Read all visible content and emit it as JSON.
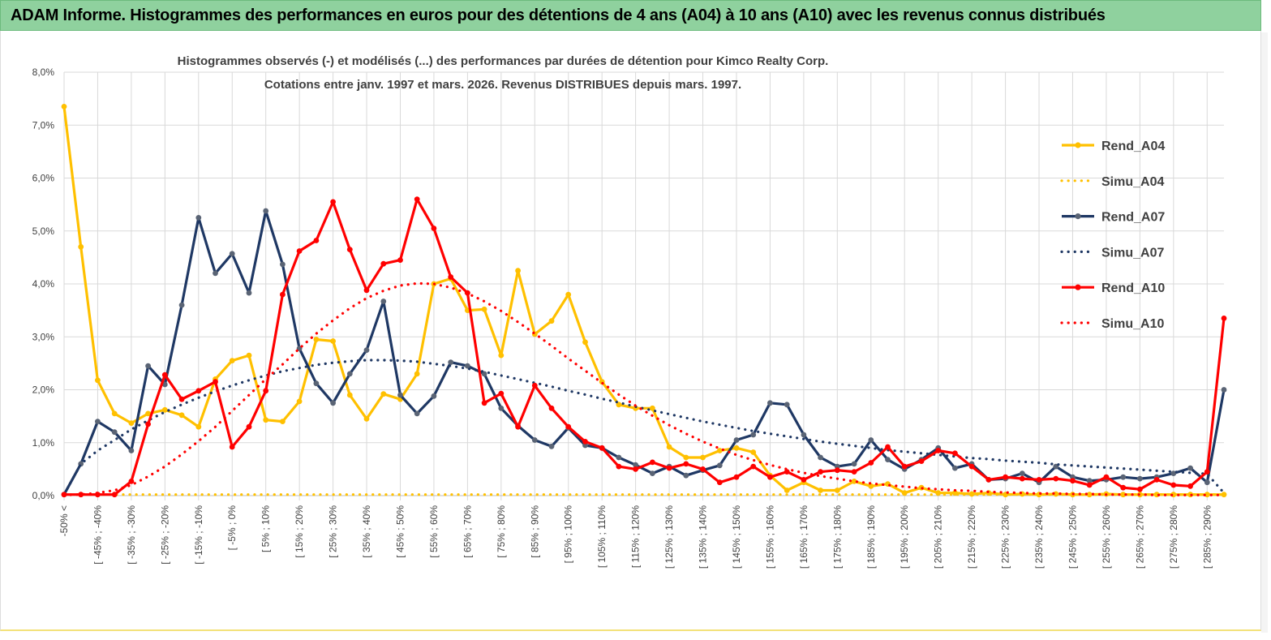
{
  "banner": {
    "title": "ADAM Informe. Histogrammes des performances en euros pour des détentions de 4 ans (A04) à 10 ans (A10) avec les revenus connus distribués"
  },
  "chart_data": {
    "type": "line",
    "title_line1": "Histogrammes observés (-) et modélisés (...) des performances par durées de détention pour Kimco Realty Corp.",
    "title_line2": "Cotations entre janv. 1997 et mars. 2026.  Revenus DISTRIBUES depuis mars. 1997.",
    "ylim": [
      0,
      8
    ],
    "yticks": [
      "0,0%",
      "1,0%",
      "2,0%",
      "3,0%",
      "4,0%",
      "5,0%",
      "6,0%",
      "7,0%",
      "8,0%"
    ],
    "xticks": [
      "-50% <",
      "[ -45% ; -40%",
      "[ -35% ; -30%",
      "[ -25% ; -20%",
      "[ -15% ; -10%",
      "[ -5% ; 0%",
      "[ 5% ; 10%",
      "[ 15% ; 20%",
      "[ 25% ; 30%",
      "[ 35% ; 40%",
      "[ 45% ; 50%",
      "[ 55% ; 60%",
      "[ 65% ; 70%",
      "[ 75% ; 80%",
      "[ 85% ; 90%",
      "[ 95% ; 100%",
      "[ 105% ; 110%",
      "[ 115% ; 120%",
      "[ 125% ; 130%",
      "[ 135% ; 140%",
      "[ 145% ; 150%",
      "[ 155% ; 160%",
      "[ 165% ; 170%",
      "[ 175% ; 180%",
      "[ 185% ; 190%",
      "[ 195% ; 200%",
      "[ 205% ; 210%",
      "[ 215% ; 220%",
      "[ 225% ; 230%",
      "[ 235% ; 240%",
      "[ 245% ; 250%",
      "[ 255% ; 260%",
      "[ 265% ; 270%",
      "[ 275% ; 280%",
      "[ 285% ; 290%"
    ],
    "n_categories": 70,
    "series": [
      {
        "name": "Rend_A04",
        "color": "#ffc000",
        "style": "solid",
        "markers": true,
        "values": [
          7.35,
          4.7,
          2.18,
          1.55,
          1.37,
          1.55,
          1.62,
          1.52,
          1.3,
          2.2,
          2.55,
          2.65,
          1.43,
          1.4,
          1.78,
          2.95,
          2.92,
          1.9,
          1.45,
          1.92,
          1.82,
          2.3,
          4.0,
          4.1,
          3.5,
          3.52,
          2.65,
          4.25,
          3.05,
          3.3,
          3.8,
          2.9,
          2.15,
          1.72,
          1.65,
          1.65,
          0.92,
          0.72,
          0.72,
          0.85,
          0.9,
          0.82,
          0.38,
          0.1,
          0.25,
          0.1,
          0.1,
          0.27,
          0.18,
          0.22,
          0.05,
          0.15,
          0.05,
          0.05,
          0.03,
          0.05,
          0.02,
          0.03,
          0.02,
          0.03,
          0.02,
          0.02,
          0.03,
          0.02,
          0.02,
          0.02,
          0.02,
          0.02,
          0.02,
          0.02
        ]
      },
      {
        "name": "Simu_A04",
        "color": "#ffc000",
        "style": "dotted",
        "markers": false,
        "values": [
          0.02,
          0.02,
          0.02,
          0.02,
          0.02,
          0.02,
          0.02,
          0.02,
          0.02,
          0.02,
          0.02,
          0.02,
          0.02,
          0.02,
          0.02,
          0.02,
          0.02,
          0.02,
          0.02,
          0.02,
          0.02,
          0.02,
          0.02,
          0.02,
          0.02,
          0.02,
          0.02,
          0.02,
          0.02,
          0.02,
          0.02,
          0.02,
          0.02,
          0.02,
          0.02,
          0.02,
          0.02,
          0.02,
          0.02,
          0.02,
          0.02,
          0.02,
          0.02,
          0.02,
          0.02,
          0.02,
          0.02,
          0.02,
          0.02,
          0.02,
          0.02,
          0.02,
          0.02,
          0.02,
          0.02,
          0.02,
          0.02,
          0.02,
          0.02,
          0.02,
          0.02,
          0.02,
          0.02,
          0.02,
          0.02,
          0.02,
          0.02,
          0.02,
          0.02,
          0.02
        ]
      },
      {
        "name": "Rend_A07",
        "color": "#1f3864",
        "style": "solid",
        "markers": true,
        "values": [
          0.02,
          0.6,
          1.4,
          1.2,
          0.85,
          2.45,
          2.1,
          3.6,
          5.25,
          4.2,
          4.57,
          3.83,
          5.38,
          4.37,
          2.78,
          2.12,
          1.75,
          2.3,
          2.75,
          3.67,
          1.9,
          1.55,
          1.88,
          2.52,
          2.45,
          2.3,
          1.65,
          1.32,
          1.05,
          0.93,
          1.28,
          0.95,
          0.9,
          0.72,
          0.58,
          0.42,
          0.55,
          0.38,
          0.48,
          0.57,
          1.05,
          1.15,
          1.75,
          1.72,
          1.15,
          0.72,
          0.55,
          0.6,
          1.05,
          0.68,
          0.5,
          0.68,
          0.9,
          0.52,
          0.6,
          0.3,
          0.32,
          0.42,
          0.25,
          0.55,
          0.35,
          0.28,
          0.3,
          0.35,
          0.32,
          0.35,
          0.42,
          0.52,
          0.25,
          2.0
        ]
      },
      {
        "name": "Simu_A07",
        "color": "#1f3864",
        "style": "dotted",
        "markers": false,
        "values": [
          0.02,
          0.6,
          0.85,
          1.05,
          1.25,
          1.42,
          1.58,
          1.72,
          1.85,
          1.97,
          2.08,
          2.18,
          2.27,
          2.35,
          2.41,
          2.47,
          2.51,
          2.54,
          2.56,
          2.56,
          2.55,
          2.53,
          2.49,
          2.45,
          2.4,
          2.34,
          2.27,
          2.2,
          2.13,
          2.06,
          1.98,
          1.91,
          1.83,
          1.76,
          1.68,
          1.61,
          1.54,
          1.47,
          1.4,
          1.34,
          1.28,
          1.22,
          1.17,
          1.12,
          1.07,
          1.02,
          0.98,
          0.94,
          0.9,
          0.86,
          0.83,
          0.8,
          0.77,
          0.74,
          0.71,
          0.69,
          0.66,
          0.64,
          0.62,
          0.59,
          0.57,
          0.55,
          0.53,
          0.51,
          0.49,
          0.47,
          0.45,
          0.43,
          0.41,
          0.05
        ]
      },
      {
        "name": "Rend_A10",
        "color": "#ff0000",
        "style": "solid",
        "markers": true,
        "values": [
          0.02,
          0.02,
          0.02,
          0.02,
          0.27,
          1.35,
          2.28,
          1.82,
          1.98,
          2.15,
          0.92,
          1.3,
          1.98,
          3.8,
          4.62,
          4.82,
          5.55,
          4.65,
          3.88,
          4.38,
          4.45,
          5.6,
          5.05,
          4.13,
          3.83,
          1.75,
          1.93,
          1.3,
          2.08,
          1.65,
          1.3,
          1.02,
          0.9,
          0.55,
          0.5,
          0.63,
          0.52,
          0.6,
          0.5,
          0.25,
          0.35,
          0.55,
          0.35,
          0.45,
          0.3,
          0.45,
          0.48,
          0.45,
          0.62,
          0.92,
          0.55,
          0.65,
          0.85,
          0.8,
          0.55,
          0.3,
          0.35,
          0.32,
          0.3,
          0.32,
          0.28,
          0.2,
          0.35,
          0.15,
          0.12,
          0.3,
          0.2,
          0.18,
          0.45,
          3.35
        ]
      },
      {
        "name": "Simu_A10",
        "color": "#ff0000",
        "style": "dotted",
        "markers": false,
        "values": [
          0.01,
          0.02,
          0.05,
          0.1,
          0.2,
          0.36,
          0.55,
          0.78,
          1.03,
          1.3,
          1.6,
          1.9,
          2.2,
          2.48,
          2.78,
          3.06,
          3.31,
          3.54,
          3.73,
          3.87,
          3.97,
          4.01,
          4.0,
          3.93,
          3.82,
          3.67,
          3.49,
          3.28,
          3.06,
          2.83,
          2.59,
          2.36,
          2.13,
          1.91,
          1.7,
          1.51,
          1.33,
          1.17,
          1.02,
          0.89,
          0.77,
          0.67,
          0.58,
          0.5,
          0.43,
          0.37,
          0.32,
          0.27,
          0.23,
          0.2,
          0.17,
          0.14,
          0.12,
          0.1,
          0.09,
          0.07,
          0.06,
          0.05,
          0.04,
          0.04,
          0.03,
          0.03,
          0.02,
          0.02,
          0.02,
          0.01,
          0.01,
          0.01,
          0.01,
          0.01
        ]
      }
    ]
  }
}
